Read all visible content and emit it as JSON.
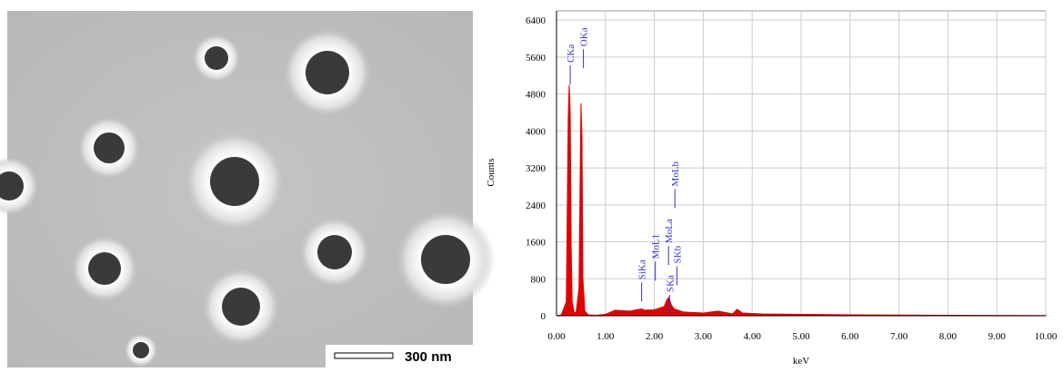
{
  "image": {
    "scale_bar": "300 nm"
  },
  "chart_data": {
    "type": "area",
    "x_label": "keV",
    "y_label": "Counts",
    "color": "#e00000",
    "grid": true,
    "xlim": [
      0,
      10
    ],
    "ylim": [
      0,
      6600
    ],
    "xticks": [
      {
        "value": 0,
        "label": "0.00"
      },
      {
        "value": 1,
        "label": "1.00"
      },
      {
        "value": 2,
        "label": "2.00"
      },
      {
        "value": 3,
        "label": "3.00"
      },
      {
        "value": 4,
        "label": "4.00"
      },
      {
        "value": 5,
        "label": "5.00"
      },
      {
        "value": 6,
        "label": "6.00"
      },
      {
        "value": 7,
        "label": "7.00"
      },
      {
        "value": 8,
        "label": "8.00"
      },
      {
        "value": 9,
        "label": "9.00"
      },
      {
        "value": 10,
        "label": "10.00"
      }
    ],
    "yticks": [
      0,
      800,
      1600,
      2400,
      3200,
      4000,
      4800,
      5600,
      6400
    ],
    "x": [
      0,
      0.1,
      0.2,
      0.24,
      0.26,
      0.28,
      0.3,
      0.32,
      0.36,
      0.4,
      0.46,
      0.5,
      0.52,
      0.54,
      0.58,
      0.65,
      0.8,
      1.0,
      1.2,
      1.5,
      1.74,
      1.8,
      2.0,
      2.2,
      2.26,
      2.3,
      2.34,
      2.4,
      2.6,
      3.0,
      3.3,
      3.6,
      3.69,
      3.8,
      4.2,
      5,
      6,
      7,
      8,
      9,
      10
    ],
    "values": [
      0,
      20,
      300,
      4300,
      5000,
      4400,
      1500,
      300,
      80,
      60,
      600,
      4600,
      3900,
      800,
      100,
      20,
      10,
      30,
      120,
      100,
      150,
      120,
      130,
      200,
      350,
      400,
      250,
      150,
      80,
      60,
      100,
      40,
      140,
      60,
      40,
      30,
      20,
      15,
      10,
      8,
      5
    ],
    "annotations": [
      {
        "text": "CKa",
        "x": 0.28,
        "y": 5480
      },
      {
        "text": "OKa",
        "x": 0.55,
        "y": 5830
      },
      {
        "text": "SiKa",
        "x": 1.74,
        "y": 780
      },
      {
        "text": "MoL1",
        "x": 2.02,
        "y": 1230
      },
      {
        "text": "MoLa",
        "x": 2.29,
        "y": 1570
      },
      {
        "text": "SKa",
        "x": 2.31,
        "y": 510
      },
      {
        "text": "SKb",
        "x": 2.46,
        "y": 1130
      },
      {
        "text": "MoLb",
        "x": 2.42,
        "y": 2800
      }
    ]
  }
}
